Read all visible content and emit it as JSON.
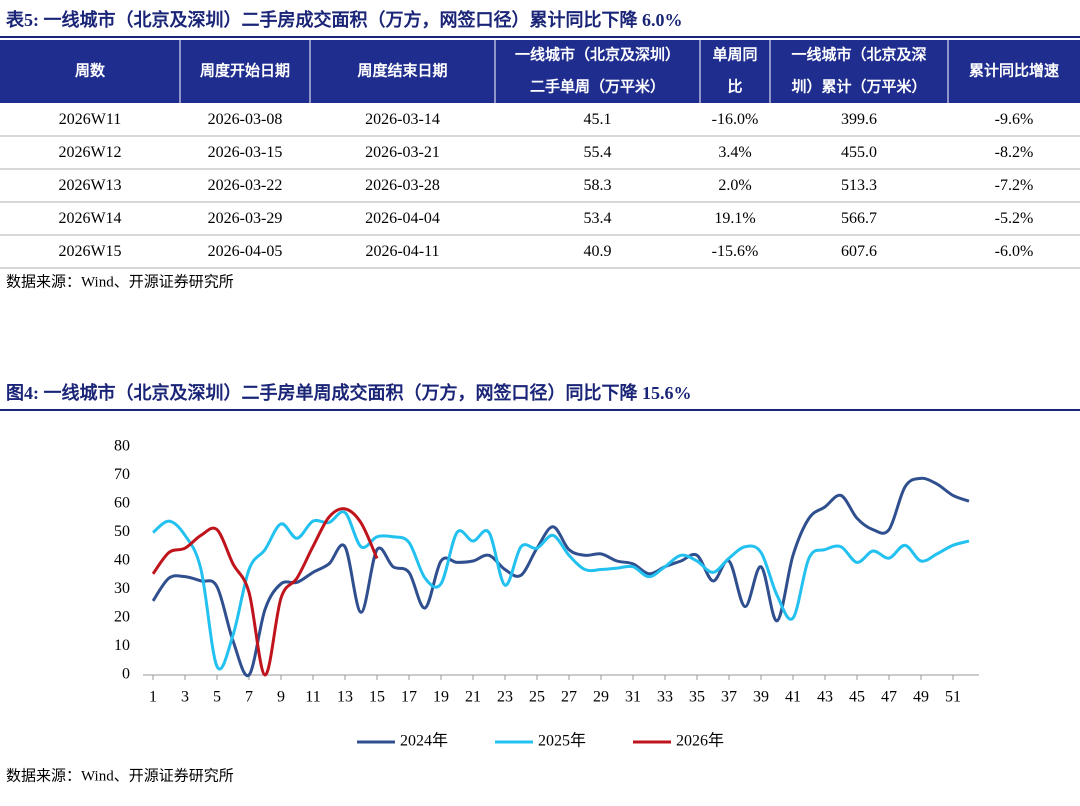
{
  "table": {
    "title": "表5: 一线城市（北京及深圳）二手房成交面积（万方，网签口径）累计同比下降 6.0%",
    "header": [
      [
        "周数"
      ],
      [
        "周度开始日期"
      ],
      [
        "周度结束日期"
      ],
      [
        "一线城市（北京及深圳）",
        "二手单周（万平米）"
      ],
      [
        "单周同",
        "比"
      ],
      [
        "一线城市（北京及深",
        "圳）累计（万平米）"
      ],
      [
        "累计同比增速"
      ]
    ],
    "rows": [
      [
        "2026W11",
        "2026-03-08",
        "2026-03-14",
        "45.1",
        "-16.0%",
        "399.6",
        "-9.6%"
      ],
      [
        "2026W12",
        "2026-03-15",
        "2026-03-21",
        "55.4",
        "3.4%",
        "455.0",
        "-8.2%"
      ],
      [
        "2026W13",
        "2026-03-22",
        "2026-03-28",
        "58.3",
        "2.0%",
        "513.3",
        "-7.2%"
      ],
      [
        "2026W14",
        "2026-03-29",
        "2026-04-04",
        "53.4",
        "19.1%",
        "566.7",
        "-5.2%"
      ],
      [
        "2026W15",
        "2026-04-05",
        "2026-04-11",
        "40.9",
        "-15.6%",
        "607.6",
        "-6.0%"
      ]
    ],
    "source": "数据来源：Wind、开源证券研究所"
  },
  "chart_data": {
    "type": "line",
    "title": "图4: 一线城市（北京及深圳）二手房单周成交面积（万方，网签口径）同比下降 15.6%",
    "x": [
      1,
      2,
      3,
      4,
      5,
      6,
      7,
      8,
      9,
      10,
      11,
      12,
      13,
      14,
      15,
      16,
      17,
      18,
      19,
      20,
      21,
      22,
      23,
      24,
      25,
      26,
      27,
      28,
      29,
      30,
      31,
      32,
      33,
      34,
      35,
      36,
      37,
      38,
      39,
      40,
      41,
      42,
      43,
      44,
      45,
      46,
      47,
      48,
      49,
      50,
      51,
      52
    ],
    "xlim": [
      1,
      52
    ],
    "xticks": [
      1,
      3,
      5,
      7,
      9,
      11,
      13,
      15,
      17,
      19,
      21,
      23,
      25,
      27,
      29,
      31,
      33,
      35,
      37,
      39,
      41,
      43,
      45,
      47,
      49,
      51
    ],
    "ylim": [
      0,
      80
    ],
    "yticks": [
      0,
      10,
      20,
      30,
      40,
      50,
      60,
      70,
      80
    ],
    "grid": false,
    "legend": "bottom",
    "series": [
      {
        "name": "2024年",
        "color": "#2f4f8f",
        "values": [
          26,
          34,
          34.5,
          33,
          31,
          12,
          0,
          23,
          32,
          32.5,
          36,
          39,
          45,
          22,
          44,
          38,
          36,
          23.5,
          40,
          39.5,
          40,
          42,
          37,
          35,
          44.5,
          52,
          44,
          42,
          42.5,
          40,
          39,
          35.5,
          38,
          40,
          42,
          33,
          40,
          24,
          38,
          19,
          42,
          55,
          59,
          63,
          55,
          51,
          51,
          66,
          69,
          67,
          63,
          61
        ]
      },
      {
        "name": "2025年",
        "color": "#22c1f0",
        "values": [
          50,
          54,
          49,
          37,
          3,
          14,
          37,
          44,
          53,
          48,
          54,
          53.5,
          57,
          45,
          48.5,
          48.5,
          46.5,
          34,
          32,
          50,
          47,
          50,
          31.5,
          45,
          44.5,
          49,
          42,
          37,
          37,
          37.5,
          38,
          34.5,
          38,
          42,
          40,
          36,
          41,
          45,
          43,
          28,
          20,
          41,
          44,
          45,
          39.5,
          43.5,
          41,
          45.5,
          40,
          42.5,
          45.5,
          47
        ]
      },
      {
        "name": "2026年",
        "color": "#c0141c",
        "values": [
          35.5,
          43,
          44.5,
          49,
          51,
          39,
          29,
          0,
          27,
          34,
          45.1,
          55.4,
          58.3,
          53.4,
          40.9,
          null,
          null,
          null,
          null,
          null,
          null,
          null,
          null,
          null,
          null,
          null,
          null,
          null,
          null,
          null,
          null,
          null,
          null,
          null,
          null,
          null,
          null,
          null,
          null,
          null,
          null,
          null,
          null,
          null,
          null,
          null,
          null,
          null,
          null,
          null,
          null,
          null
        ]
      }
    ],
    "source": "数据来源：Wind、开源证券研究所"
  }
}
